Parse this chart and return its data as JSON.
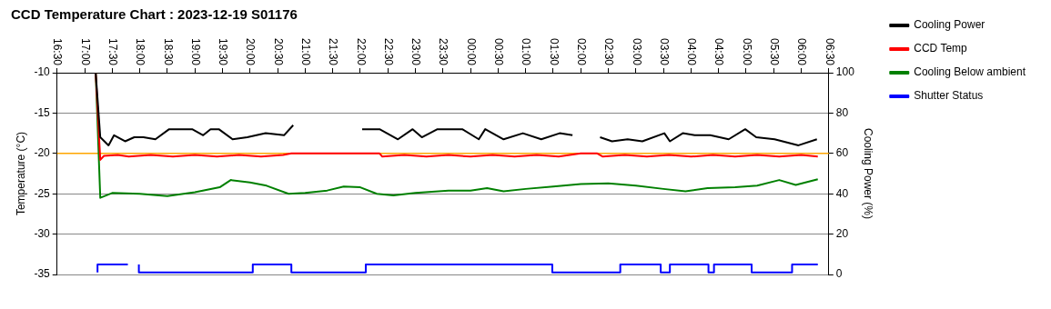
{
  "chart_data": {
    "type": "line",
    "title": "CCD Temperature Chart : 2023-12-19 S01176",
    "ylabel": "Temperature (°C)",
    "y2label": "Cooling Power (%)",
    "xlim": [
      "2023-12-19T16:30",
      "2023-12-20T06:30"
    ],
    "xticks": [
      {
        "value": "2023-12-19T16:30",
        "label": "16:30"
      },
      {
        "value": "2023-12-19T17:00",
        "label": "17:00"
      },
      {
        "value": "2023-12-19T17:30",
        "label": "17:30"
      },
      {
        "value": "2023-12-19T18:00",
        "label": "18:00"
      },
      {
        "value": "2023-12-19T18:30",
        "label": "18:30"
      },
      {
        "value": "2023-12-19T19:00",
        "label": "19:00"
      },
      {
        "value": "2023-12-19T19:30",
        "label": "19:30"
      },
      {
        "value": "2023-12-19T20:00",
        "label": "20:00"
      },
      {
        "value": "2023-12-19T20:30",
        "label": "20:30"
      },
      {
        "value": "2023-12-19T21:00",
        "label": "21:00"
      },
      {
        "value": "2023-12-19T21:30",
        "label": "21:30"
      },
      {
        "value": "2023-12-19T22:00",
        "label": "22:00"
      },
      {
        "value": "2023-12-19T22:30",
        "label": "22:30"
      },
      {
        "value": "2023-12-19T23:00",
        "label": "23:00"
      },
      {
        "value": "2023-12-19T23:30",
        "label": "23:30"
      },
      {
        "value": "2023-12-20T00:00",
        "label": "00:00"
      },
      {
        "value": "2023-12-20T00:30",
        "label": "00:30"
      },
      {
        "value": "2023-12-20T01:00",
        "label": "01:00"
      },
      {
        "value": "2023-12-20T01:30",
        "label": "01:30"
      },
      {
        "value": "2023-12-20T02:00",
        "label": "02:00"
      },
      {
        "value": "2023-12-20T02:30",
        "label": "02:30"
      },
      {
        "value": "2023-12-20T03:00",
        "label": "03:00"
      },
      {
        "value": "2023-12-20T03:30",
        "label": "03:30"
      },
      {
        "value": "2023-12-20T04:00",
        "label": "04:00"
      },
      {
        "value": "2023-12-20T04:30",
        "label": "04:30"
      },
      {
        "value": "2023-12-20T05:00",
        "label": "05:00"
      },
      {
        "value": "2023-12-20T05:30",
        "label": "05:30"
      },
      {
        "value": "2023-12-20T06:00",
        "label": "06:00"
      },
      {
        "value": "2023-12-20T06:30",
        "label": "06:30"
      }
    ],
    "ylim": [
      -35,
      -10
    ],
    "yticks": [
      -35,
      -30,
      -25,
      -20,
      -15,
      -10
    ],
    "y2lim": [
      0,
      100
    ],
    "y2ticks": [
      0,
      20,
      40,
      60,
      80,
      100
    ],
    "grid": "y",
    "legend": "right",
    "marker": "none",
    "ref_lines": [
      {
        "axis": "y",
        "value": -20,
        "color": "#ffa500"
      }
    ],
    "series": [
      {
        "name": "Cooling Power",
        "color": "#000000",
        "axis": "y2",
        "x": [
          "2023-12-19T17:12",
          "2023-12-19T17:17",
          "2023-12-19T17:26",
          "2023-12-19T17:32",
          "2023-12-19T17:44",
          "2023-12-19T17:54",
          "2023-12-19T18:04",
          "2023-12-19T18:17",
          "2023-12-19T18:32",
          "2023-12-19T18:47",
          "2023-12-19T18:57",
          "2023-12-19T19:09",
          "2023-12-19T19:17",
          "2023-12-19T19:26",
          "2023-12-19T19:41",
          "2023-12-19T19:57",
          "2023-12-19T20:17",
          "2023-12-19T20:37",
          "2023-12-19T20:47",
          "2023-12-19T21:24",
          "2023-12-19T22:02",
          "2023-12-19T22:21",
          "2023-12-19T22:41",
          "2023-12-19T22:57",
          "2023-12-19T23:07",
          "2023-12-19T23:24",
          "2023-12-19T23:39",
          "2023-12-19T23:51",
          "2023-12-20T00:09",
          "2023-12-20T00:16",
          "2023-12-20T00:36",
          "2023-12-20T00:57",
          "2023-12-20T01:17",
          "2023-12-20T01:37",
          "2023-12-20T01:51",
          "2023-12-20T02:06",
          "2023-12-20T02:21",
          "2023-12-20T02:34",
          "2023-12-20T02:51",
          "2023-12-20T03:07",
          "2023-12-20T03:31",
          "2023-12-20T03:37",
          "2023-12-20T03:51",
          "2023-12-20T04:04",
          "2023-12-20T04:21",
          "2023-12-20T04:41",
          "2023-12-20T04:59",
          "2023-12-20T05:11",
          "2023-12-20T05:31",
          "2023-12-20T05:57",
          "2023-12-20T06:17"
        ],
        "values": [
          100,
          68,
          64,
          69,
          66,
          68,
          68,
          67,
          72,
          72,
          72,
          69,
          72,
          72,
          67,
          68,
          70,
          69,
          74,
          null,
          72,
          72,
          67,
          72,
          68,
          72,
          72,
          72,
          67,
          72,
          67,
          70,
          67,
          70,
          69,
          null,
          68,
          66,
          67,
          66,
          70,
          66,
          70,
          69,
          69,
          67,
          72,
          68,
          67,
          64,
          67
        ]
      },
      {
        "name": "CCD Temp",
        "color": "#ff0000",
        "x": [
          "2023-12-19T17:12",
          "2023-12-19T17:17",
          "2023-12-19T17:21",
          "2023-12-19T17:36",
          "2023-12-19T17:48",
          "2023-12-19T18:12",
          "2023-12-19T18:36",
          "2023-12-19T19:00",
          "2023-12-19T19:24",
          "2023-12-19T19:48",
          "2023-12-19T20:12",
          "2023-12-19T20:36",
          "2023-12-19T20:45",
          "2023-12-19T22:21",
          "2023-12-19T22:24",
          "2023-12-19T22:48",
          "2023-12-19T23:12",
          "2023-12-19T23:36",
          "2023-12-20T00:00",
          "2023-12-20T00:24",
          "2023-12-20T00:48",
          "2023-12-20T01:12",
          "2023-12-20T01:36",
          "2023-12-20T02:00",
          "2023-12-20T02:18",
          "2023-12-20T02:24",
          "2023-12-20T02:48",
          "2023-12-20T03:12",
          "2023-12-20T03:36",
          "2023-12-20T04:00",
          "2023-12-20T04:24",
          "2023-12-20T04:48",
          "2023-12-20T05:12",
          "2023-12-20T05:36",
          "2023-12-20T06:00",
          "2023-12-20T06:18"
        ],
        "values": [
          -10,
          -20.8,
          -20.3,
          -20.2,
          -20.4,
          -20.2,
          -20.4,
          -20.2,
          -20.4,
          -20.2,
          -20.4,
          -20.2,
          -20.0,
          -20.0,
          -20.4,
          -20.2,
          -20.4,
          -20.2,
          -20.4,
          -20.2,
          -20.4,
          -20.2,
          -20.4,
          -20.0,
          -20.0,
          -20.4,
          -20.2,
          -20.4,
          -20.2,
          -20.4,
          -20.2,
          -20.4,
          -20.2,
          -20.4,
          -20.2,
          -20.4
        ]
      },
      {
        "name": "Cooling Below ambient",
        "color": "#008000",
        "x": [
          "2023-12-19T17:12",
          "2023-12-19T17:17",
          "2023-12-19T17:30",
          "2023-12-19T18:00",
          "2023-12-19T18:30",
          "2023-12-19T19:00",
          "2023-12-19T19:27",
          "2023-12-19T19:39",
          "2023-12-19T20:00",
          "2023-12-19T20:18",
          "2023-12-19T20:42",
          "2023-12-19T21:00",
          "2023-12-19T21:24",
          "2023-12-19T21:42",
          "2023-12-19T22:00",
          "2023-12-19T22:18",
          "2023-12-19T22:36",
          "2023-12-19T23:00",
          "2023-12-19T23:36",
          "2023-12-20T00:00",
          "2023-12-20T00:18",
          "2023-12-20T00:36",
          "2023-12-20T01:00",
          "2023-12-20T01:30",
          "2023-12-20T02:00",
          "2023-12-20T02:30",
          "2023-12-20T03:00",
          "2023-12-20T03:30",
          "2023-12-20T03:54",
          "2023-12-20T04:18",
          "2023-12-20T04:48",
          "2023-12-20T05:12",
          "2023-12-20T05:36",
          "2023-12-20T05:54",
          "2023-12-20T06:18"
        ],
        "values": [
          -10,
          -25.5,
          -24.9,
          -25.0,
          -25.3,
          -24.8,
          -24.2,
          -23.3,
          -23.6,
          -24.0,
          -25.0,
          -24.9,
          -24.6,
          -24.1,
          -24.2,
          -25.0,
          -25.2,
          -24.9,
          -24.6,
          -24.6,
          -24.3,
          -24.7,
          -24.4,
          -24.1,
          -23.8,
          -23.7,
          -24.0,
          -24.4,
          -24.7,
          -24.3,
          -24.2,
          -24.0,
          -23.3,
          -23.9,
          -23.2
        ]
      },
      {
        "name": "Shutter Status",
        "color": "#0000ff",
        "type": "step",
        "axis": "y2",
        "x": [
          "2023-12-19T17:14",
          "2023-12-19T17:15",
          "2023-12-19T17:47",
          "2023-12-19T17:54",
          "2023-12-19T17:59",
          "2023-12-19T20:03",
          "2023-12-19T20:45",
          "2023-12-19T22:06",
          "2023-12-20T01:29",
          "2023-12-20T02:43",
          "2023-12-20T03:27",
          "2023-12-20T03:37",
          "2023-12-20T04:19",
          "2023-12-20T04:25",
          "2023-12-20T05:06",
          "2023-12-20T05:50",
          "2023-12-20T06:10",
          "2023-12-20T06:18"
        ],
        "values": [
          1,
          5,
          5,
          null,
          5,
          1,
          5,
          1,
          5,
          1,
          5,
          1,
          5,
          1,
          5,
          1,
          5,
          5
        ]
      }
    ]
  }
}
